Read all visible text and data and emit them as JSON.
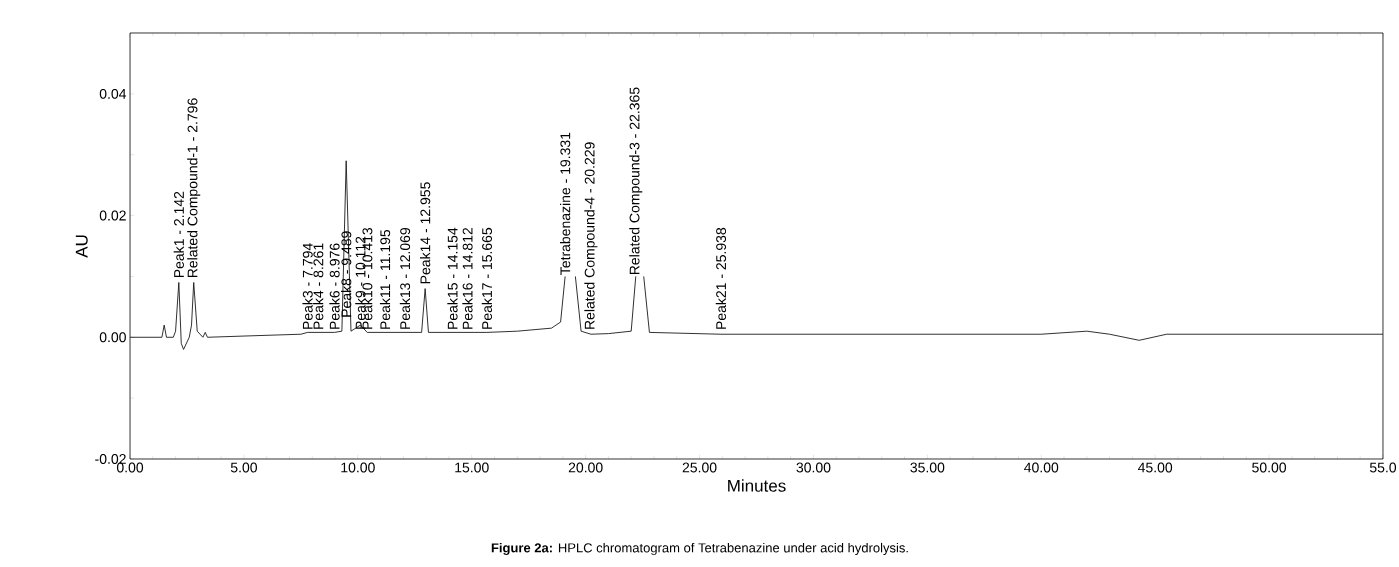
{
  "chart_data": {
    "type": "line",
    "xlabel": "Minutes",
    "ylabel": "AU",
    "color": "#1a1a1a",
    "marker": "none",
    "line_style": "solid",
    "xlim": [
      0,
      55
    ],
    "ylim": [
      -0.02,
      0.05
    ],
    "xticks": [
      {
        "value": 0,
        "label": "0.00"
      },
      {
        "value": 5,
        "label": "5.00"
      },
      {
        "value": 10,
        "label": "10.00"
      },
      {
        "value": 15,
        "label": "15.00"
      },
      {
        "value": 20,
        "label": "20.00"
      },
      {
        "value": 25,
        "label": "25.00"
      },
      {
        "value": 30,
        "label": "30.00"
      },
      {
        "value": 35,
        "label": "35.00"
      },
      {
        "value": 40,
        "label": "40.00"
      },
      {
        "value": 45,
        "label": "45.00"
      },
      {
        "value": 50,
        "label": "50.00"
      },
      {
        "value": 55,
        "label": "55.0"
      }
    ],
    "yticks": [
      {
        "value": -0.02,
        "label": "-0.02"
      },
      {
        "value": -0.01,
        "label": null
      },
      {
        "value": 0,
        "label": "0.00"
      },
      {
        "value": 0.01,
        "label": null
      },
      {
        "value": 0.02,
        "label": "0.02"
      },
      {
        "value": 0.03,
        "label": null
      },
      {
        "value": 0.04,
        "label": "0.04"
      }
    ],
    "x": [
      0,
      1.0,
      1.4,
      1.5,
      1.6,
      1.9,
      2.0,
      2.142,
      2.25,
      2.35,
      2.6,
      2.7,
      2.796,
      2.95,
      3.2,
      3.3,
      3.4,
      5,
      7.5,
      7.794,
      8.261,
      8.976,
      9.3,
      9.489,
      9.7,
      10.112,
      10.413,
      11.195,
      12.069,
      12.8,
      12.955,
      13.1,
      14.154,
      15.665,
      17,
      18.5,
      18.9,
      19.1,
      19.331,
      19.55,
      19.8,
      20.229,
      21,
      22.0,
      22.2,
      22.365,
      22.55,
      22.8,
      25.938,
      30,
      40,
      42,
      43,
      44.3,
      45.5,
      50,
      55
    ],
    "values": [
      0,
      0,
      0,
      0.002,
      0,
      0,
      0.001,
      0.009,
      -0.001,
      -0.002,
      0,
      0.002,
      0.009,
      0.001,
      0,
      0.0008,
      0,
      0.0002,
      0.0005,
      0.0008,
      0.0008,
      0.0008,
      0.001,
      0.029,
      0.001,
      0.002,
      0.0008,
      0.0008,
      0.0008,
      0.0008,
      0.008,
      0.0008,
      0.0008,
      0.0008,
      0.001,
      0.0015,
      0.0025,
      0.01,
      null,
      0.01,
      0.001,
      0.0005,
      0.0006,
      0.001,
      0.01,
      null,
      0.01,
      0.0008,
      0.0005,
      0.0005,
      0.0005,
      0.001,
      0.0005,
      -0.0005,
      0.0005,
      0.0005,
      0.0005
    ],
    "annotations": [
      {
        "text": "Peak1 - 2.142",
        "x": 2.142,
        "y": 0.0095
      },
      {
        "text": "Related Compound-1 - 2.796",
        "x": 2.796,
        "y": 0.0095
      },
      {
        "text": "Peak3 - 7.794",
        "x": 7.794,
        "y": 0.001
      },
      {
        "text": "Peak4 - 8.261",
        "x": 8.261,
        "y": 0.001
      },
      {
        "text": "Peak6 - 8.976",
        "x": 8.976,
        "y": 0.001
      },
      {
        "text": "Peak8 - 9.489",
        "x": 9.489,
        "y": 0.003
      },
      {
        "text": "Peak9 - 10.112",
        "x": 10.112,
        "y": 0.001
      },
      {
        "text": "Peak10 - 10.413",
        "x": 10.413,
        "y": 0.001
      },
      {
        "text": "Peak11 - 11.195",
        "x": 11.195,
        "y": 0.001
      },
      {
        "text": "Peak13 - 12.069",
        "x": 12.069,
        "y": 0.001
      },
      {
        "text": "Peak14 - 12.955",
        "x": 12.955,
        "y": 0.0085
      },
      {
        "text": "Peak15 - 14.154",
        "x": 14.154,
        "y": 0.001
      },
      {
        "text": "Peak16 - 14.812",
        "x": 14.812,
        "y": 0.001
      },
      {
        "text": "Peak17 - 15.665",
        "x": 15.665,
        "y": 0.001
      },
      {
        "text": "Tetrabenazine - 19.331",
        "x": 19.1,
        "y": 0.01
      },
      {
        "text": "Related Compound-4 - 20.229",
        "x": 20.229,
        "y": 0.001
      },
      {
        "text": "Related Compound-3 - 22.365",
        "x": 22.2,
        "y": 0.01
      },
      {
        "text": "Peak21 - 25.938",
        "x": 25.938,
        "y": 0.001
      },
      "**Figure 2a:** HPLC chromatogram of Tetrabenazine under acid hydrolysis."
    ]
  }
}
